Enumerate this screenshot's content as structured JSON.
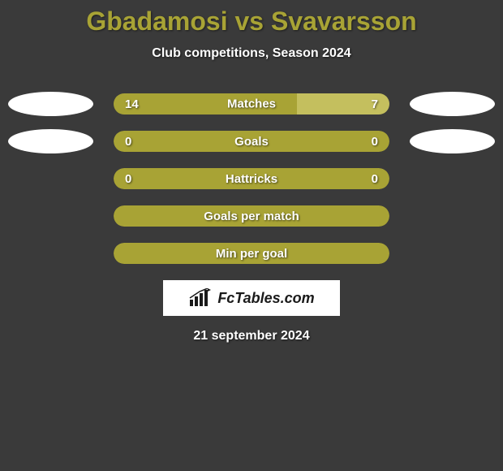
{
  "title": "Gbadamosi vs Svavarsson",
  "subtitle": "Club competitions, Season 2024",
  "colors": {
    "background": "#3a3a3a",
    "title_color": "#a8a335",
    "text_color": "#ffffff",
    "bar_primary": "#a8a335",
    "bar_secondary": "#c4bf5e",
    "ellipse_color": "#ffffff",
    "logo_bg": "#ffffff",
    "logo_text": "#1a1a1a"
  },
  "stats": [
    {
      "label": "Matches",
      "left_value": "14",
      "right_value": "7",
      "left_pct": 66.6,
      "right_pct": 33.4,
      "show_left_ellipse": true,
      "show_right_ellipse": true,
      "split": true
    },
    {
      "label": "Goals",
      "left_value": "0",
      "right_value": "0",
      "left_pct": 100,
      "right_pct": 0,
      "show_left_ellipse": true,
      "show_right_ellipse": true,
      "split": false
    },
    {
      "label": "Hattricks",
      "left_value": "0",
      "right_value": "0",
      "left_pct": 100,
      "right_pct": 0,
      "show_left_ellipse": false,
      "show_right_ellipse": false,
      "split": false
    },
    {
      "label": "Goals per match",
      "left_value": "",
      "right_value": "",
      "left_pct": 100,
      "right_pct": 0,
      "show_left_ellipse": false,
      "show_right_ellipse": false,
      "split": false
    },
    {
      "label": "Min per goal",
      "left_value": "",
      "right_value": "",
      "left_pct": 100,
      "right_pct": 0,
      "show_left_ellipse": false,
      "show_right_ellipse": false,
      "split": false
    }
  ],
  "logo": {
    "text": "FcTables.com"
  },
  "date": "21 september 2024"
}
